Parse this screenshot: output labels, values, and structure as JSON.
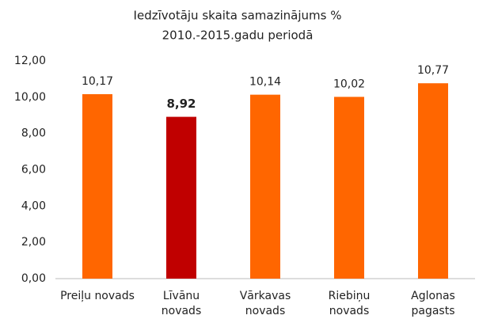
{
  "chart_data": {
    "type": "bar",
    "title": [
      "Iedzīvotāju skaita samazinājums %",
      "2010.-2015.gadu periodā"
    ],
    "categories": [
      [
        "Preiļu novads"
      ],
      [
        "Līvānu",
        "novads"
      ],
      [
        "Vārkavas",
        "novads"
      ],
      [
        "Riebiņu",
        "novads"
      ],
      [
        "Aglonas",
        "pagasts"
      ]
    ],
    "values": [
      10.17,
      8.92,
      10.14,
      10.02,
      10.77
    ],
    "value_labels": [
      "10,17",
      "8,92",
      "10,14",
      "10,02",
      "10,77"
    ],
    "colors": [
      "#ff6600",
      "#c00000",
      "#ff6600",
      "#ff6600",
      "#ff6600"
    ],
    "highlight_index": 1,
    "ylim": [
      0,
      12
    ],
    "yticks": [
      {
        "value": 0,
        "label": "0,00"
      },
      {
        "value": 2,
        "label": "2,00"
      },
      {
        "value": 4,
        "label": "4,00"
      },
      {
        "value": 6,
        "label": "6,00"
      },
      {
        "value": 8,
        "label": "8,00"
      },
      {
        "value": 10,
        "label": "10,00"
      },
      {
        "value": 12,
        "label": "12,00"
      }
    ],
    "grid": false
  }
}
